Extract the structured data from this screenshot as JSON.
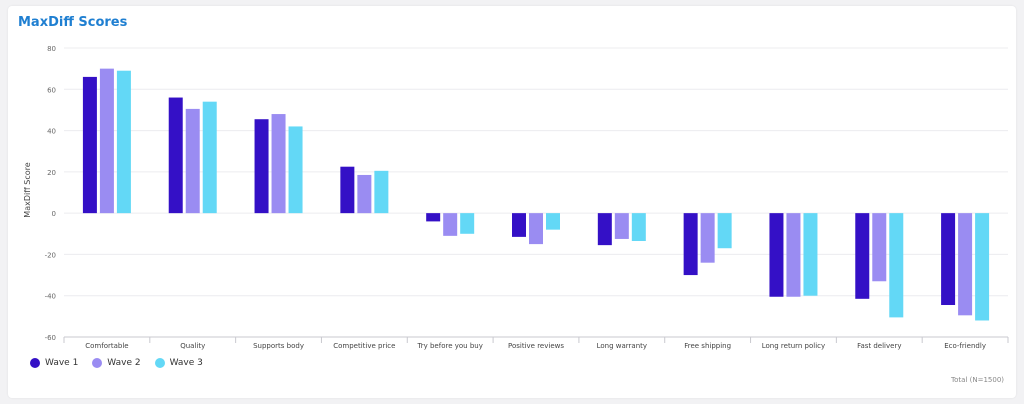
{
  "title": "MaxDiff Scores",
  "footnote": "Total (N=1500)",
  "colors": {
    "wave1": "#3410c6",
    "wave2": "#9a8cf2",
    "wave3": "#63d8f6",
    "title": "#1f7fd1"
  },
  "chart_data": {
    "type": "bar",
    "title": "MaxDiff Scores",
    "xlabel": "",
    "ylabel": "MaxDiff Score",
    "ylim": [
      -60,
      80
    ],
    "yticks": [
      80,
      60,
      40,
      20,
      0,
      -20,
      -40,
      -60
    ],
    "grid": true,
    "legend_position": "bottom-left",
    "categories": [
      "Comfortable",
      "Quality",
      "Supports body",
      "Competitive price",
      "Try before you buy",
      "Positive reviews",
      "Long warranty",
      "Free shipping",
      "Long return policy",
      "Fast delivery",
      "Eco-friendly"
    ],
    "series": [
      {
        "name": "Wave 1",
        "color": "#3410c6",
        "values": [
          66,
          56,
          45.5,
          22.5,
          -4,
          -11.5,
          -15.5,
          -30,
          -40.5,
          -41.5,
          -44.5
        ]
      },
      {
        "name": "Wave 2",
        "color": "#9a8cf2",
        "values": [
          70,
          50.5,
          48,
          18.5,
          -11,
          -15,
          -12.5,
          -24,
          -40.5,
          -33,
          -49.5
        ]
      },
      {
        "name": "Wave 3",
        "color": "#63d8f6",
        "values": [
          69,
          54,
          42,
          20.5,
          -10,
          -8,
          -13.5,
          -17,
          -40,
          -50.5,
          -52
        ]
      }
    ]
  }
}
